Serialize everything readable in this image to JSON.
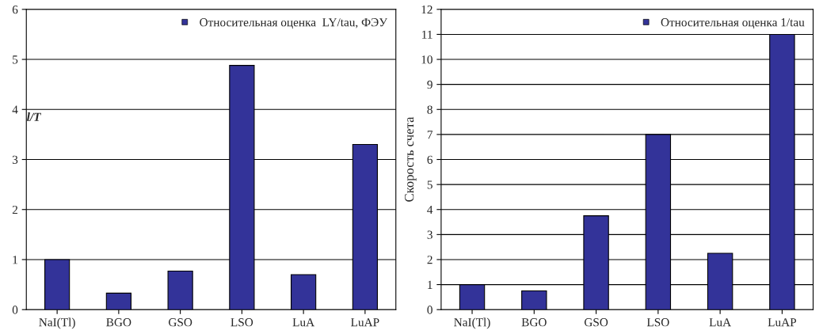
{
  "chart_data": [
    {
      "type": "bar",
      "ylabel": "l/T",
      "categories": [
        "NaI(Tl)",
        "BGO",
        "GSO",
        "LSO",
        "LuA",
        "LuAP"
      ],
      "series": [
        {
          "name": "Относительная оценка  LY/tau, ФЭУ",
          "color": "#333399",
          "values": [
            1.0,
            0.33,
            0.77,
            4.88,
            0.7,
            3.3
          ]
        }
      ],
      "ylim": [
        0,
        6
      ],
      "yticks": [
        0,
        1,
        2,
        3,
        4,
        5,
        6
      ],
      "grid": "y",
      "legend": "top right"
    },
    {
      "type": "bar",
      "ylabel": "Скорость счета",
      "categories": [
        "NaI(Tl)",
        "BGO",
        "GSO",
        "LSO",
        "LuA",
        "LuAP"
      ],
      "series": [
        {
          "name": "Относительная оценка 1/tau",
          "color": "#333399",
          "values": [
            1.0,
            0.75,
            3.75,
            7.0,
            2.25,
            11.0
          ]
        }
      ],
      "ylim": [
        0,
        12
      ],
      "yticks": [
        0,
        1,
        2,
        3,
        4,
        5,
        6,
        7,
        8,
        9,
        10,
        11,
        12
      ],
      "grid": "y",
      "legend": "top right"
    }
  ]
}
